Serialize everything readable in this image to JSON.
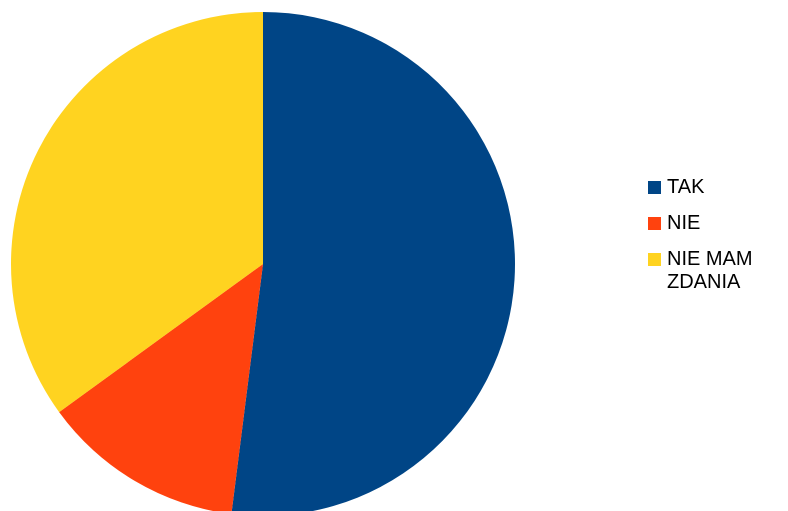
{
  "chart_data": {
    "type": "pie",
    "categories": [
      "TAK",
      "NIE",
      "NIE MAM\nZDANIA"
    ],
    "values": [
      52,
      13,
      35
    ],
    "colors": [
      "#004586",
      "#ff420e",
      "#ffd320"
    ],
    "legend_position": "right",
    "start_angle_deg": 0,
    "direction": "clockwise"
  }
}
